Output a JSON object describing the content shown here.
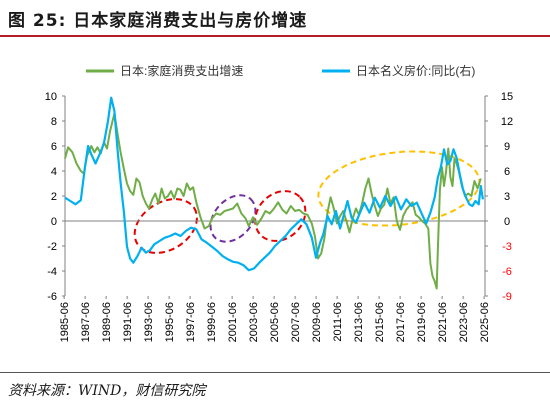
{
  "figure": {
    "title": "图 25:  日本家庭消费支出与房价增速",
    "source": "资料来源：WIND，财信研究院"
  },
  "chart_data": {
    "type": "line",
    "grid": false,
    "legend_position": "top",
    "colors": {
      "series_consumption": "#70ad47",
      "series_house_price": "#00b0f0",
      "left_axis_text": "#000000",
      "right_axis_negative_text": "#ff0000",
      "ellipse_red": "#e60000",
      "ellipse_purple": "#7030a0",
      "ellipse_yellow": "#ffc000"
    },
    "x_tick_labels": [
      "1985-06",
      "1987-06",
      "1989-06",
      "1991-06",
      "1993-06",
      "1995-06",
      "1997-06",
      "1999-06",
      "2001-06",
      "2003-06",
      "2005-06",
      "2007-06",
      "2009-06",
      "2011-06",
      "2013-06",
      "2015-06",
      "2017-06",
      "2019-06",
      "2021-06",
      "2023-06",
      "2025-06"
    ],
    "x_range": [
      1985.5,
      2025.5
    ],
    "y_left": {
      "range": [
        -6,
        10
      ],
      "ticks": [
        "-6",
        "-4",
        "-2",
        "0",
        "2",
        "4",
        "6",
        "8",
        "10"
      ]
    },
    "y_right": {
      "range": [
        -9,
        15
      ],
      "ticks": [
        "-9",
        "-6",
        "-3",
        "0",
        "3",
        "6",
        "9",
        "12",
        "15"
      ]
    },
    "series": [
      {
        "name": "日本:家庭消费支出增速",
        "axis": "left",
        "points": [
          [
            1985.5,
            5.0
          ],
          [
            1985.8,
            5.9
          ],
          [
            1986.2,
            5.5
          ],
          [
            1986.6,
            4.6
          ],
          [
            1987.0,
            4.0
          ],
          [
            1987.3,
            3.8
          ],
          [
            1987.6,
            5.2
          ],
          [
            1988.0,
            6.0
          ],
          [
            1988.3,
            5.5
          ],
          [
            1988.6,
            5.9
          ],
          [
            1988.9,
            5.4
          ],
          [
            1989.2,
            6.3
          ],
          [
            1989.5,
            5.8
          ],
          [
            1989.8,
            7.2
          ],
          [
            1990.2,
            8.6
          ],
          [
            1990.5,
            7.0
          ],
          [
            1990.8,
            5.5
          ],
          [
            1991.1,
            4.2
          ],
          [
            1991.4,
            3.0
          ],
          [
            1991.7,
            2.4
          ],
          [
            1992.0,
            2.1
          ],
          [
            1992.3,
            3.4
          ],
          [
            1992.6,
            3.1
          ],
          [
            1992.9,
            2.0
          ],
          [
            1993.2,
            1.4
          ],
          [
            1993.5,
            1.0
          ],
          [
            1993.8,
            1.7
          ],
          [
            1994.1,
            2.2
          ],
          [
            1994.4,
            1.4
          ],
          [
            1994.7,
            2.6
          ],
          [
            1995.0,
            1.8
          ],
          [
            1995.3,
            2.0
          ],
          [
            1995.6,
            2.4
          ],
          [
            1995.9,
            1.8
          ],
          [
            1996.2,
            2.6
          ],
          [
            1996.5,
            2.5
          ],
          [
            1996.8,
            2.0
          ],
          [
            1997.1,
            3.0
          ],
          [
            1997.4,
            2.5
          ],
          [
            1997.7,
            2.7
          ],
          [
            1998.0,
            1.5
          ],
          [
            1998.4,
            0.3
          ],
          [
            1998.8,
            -0.6
          ],
          [
            1999.2,
            -0.4
          ],
          [
            1999.5,
            0.2
          ],
          [
            1999.9,
            0.6
          ],
          [
            2000.3,
            0.5
          ],
          [
            2000.7,
            0.8
          ],
          [
            2001.1,
            0.9
          ],
          [
            2001.5,
            1.0
          ],
          [
            2001.9,
            1.4
          ],
          [
            2002.3,
            0.6
          ],
          [
            2002.7,
            0.2
          ],
          [
            2003.0,
            -0.4
          ],
          [
            2003.4,
            0.3
          ],
          [
            2003.8,
            -0.3
          ],
          [
            2004.2,
            0.2
          ],
          [
            2004.6,
            0.8
          ],
          [
            2005.0,
            0.6
          ],
          [
            2005.4,
            1.0
          ],
          [
            2005.8,
            1.5
          ],
          [
            2006.2,
            0.9
          ],
          [
            2006.6,
            0.6
          ],
          [
            2007.0,
            1.2
          ],
          [
            2007.4,
            0.8
          ],
          [
            2007.8,
            0.9
          ],
          [
            2008.2,
            0.6
          ],
          [
            2008.6,
            0.5
          ],
          [
            2009.0,
            -0.2
          ],
          [
            2009.3,
            -1.2
          ],
          [
            2009.6,
            -3.0
          ],
          [
            2009.9,
            -2.6
          ],
          [
            2010.2,
            -1.4
          ],
          [
            2010.5,
            0.7
          ],
          [
            2010.8,
            1.9
          ],
          [
            2011.1,
            1.0
          ],
          [
            2011.4,
            -0.2
          ],
          [
            2011.7,
            0.4
          ],
          [
            2012.0,
            0.8
          ],
          [
            2012.3,
            0.0
          ],
          [
            2012.6,
            -0.9
          ],
          [
            2012.9,
            0.2
          ],
          [
            2013.2,
            1.0
          ],
          [
            2013.5,
            0.5
          ],
          [
            2013.8,
            1.4
          ],
          [
            2014.1,
            2.6
          ],
          [
            2014.4,
            3.4
          ],
          [
            2014.7,
            2.2
          ],
          [
            2015.0,
            1.2
          ],
          [
            2015.3,
            0.4
          ],
          [
            2015.6,
            1.0
          ],
          [
            2015.9,
            1.3
          ],
          [
            2016.2,
            2.6
          ],
          [
            2016.5,
            1.4
          ],
          [
            2016.8,
            1.9
          ],
          [
            2017.1,
            0.0
          ],
          [
            2017.4,
            -0.7
          ],
          [
            2017.7,
            0.4
          ],
          [
            2018.0,
            0.9
          ],
          [
            2018.3,
            1.2
          ],
          [
            2018.6,
            1.5
          ],
          [
            2018.9,
            0.5
          ],
          [
            2019.2,
            0.3
          ],
          [
            2019.5,
            0.0
          ],
          [
            2019.8,
            -0.2
          ],
          [
            2020.1,
            -0.6
          ],
          [
            2020.3,
            -3.4
          ],
          [
            2020.5,
            -4.4
          ],
          [
            2020.7,
            -4.8
          ],
          [
            2020.9,
            -5.4
          ],
          [
            2021.0,
            -2.4
          ],
          [
            2021.2,
            2.5
          ],
          [
            2021.4,
            4.3
          ],
          [
            2021.6,
            2.8
          ],
          [
            2021.8,
            4.0
          ],
          [
            2022.0,
            5.8
          ],
          [
            2022.2,
            3.5
          ],
          [
            2022.4,
            2.8
          ],
          [
            2022.6,
            5.0
          ],
          [
            2022.8,
            4.6
          ],
          [
            2023.0,
            4.0
          ],
          [
            2023.3,
            2.8
          ],
          [
            2023.6,
            2.0
          ],
          [
            2023.9,
            2.2
          ],
          [
            2024.2,
            2.0
          ],
          [
            2024.5,
            3.2
          ],
          [
            2024.8,
            2.6
          ],
          [
            2025.1,
            3.4
          ]
        ]
      },
      {
        "name": "日本名义房价:同比(右)",
        "axis": "right",
        "points": [
          [
            1985.5,
            2.8
          ],
          [
            1986.0,
            2.4
          ],
          [
            1986.5,
            2.0
          ],
          [
            1987.0,
            2.5
          ],
          [
            1987.4,
            6.5
          ],
          [
            1987.7,
            9.0
          ],
          [
            1988.0,
            8.0
          ],
          [
            1988.4,
            6.9
          ],
          [
            1988.8,
            8.0
          ],
          [
            1989.2,
            9.3
          ],
          [
            1989.6,
            12.0
          ],
          [
            1989.9,
            14.8
          ],
          [
            1990.2,
            13.2
          ],
          [
            1990.5,
            8.6
          ],
          [
            1990.8,
            4.6
          ],
          [
            1991.1,
            1.2
          ],
          [
            1991.4,
            -3.1
          ],
          [
            1991.7,
            -4.5
          ],
          [
            1992.0,
            -5.0
          ],
          [
            1992.4,
            -4.2
          ],
          [
            1992.8,
            -3.2
          ],
          [
            1993.2,
            -3.8
          ],
          [
            1993.6,
            -3.5
          ],
          [
            1994.0,
            -2.8
          ],
          [
            1994.5,
            -2.4
          ],
          [
            1995.0,
            -2.0
          ],
          [
            1995.5,
            -1.8
          ],
          [
            1996.0,
            -1.5
          ],
          [
            1996.5,
            -1.8
          ],
          [
            1997.0,
            -1.2
          ],
          [
            1997.5,
            -0.8
          ],
          [
            1998.0,
            -1.0
          ],
          [
            1998.5,
            -2.2
          ],
          [
            1999.0,
            -2.6
          ],
          [
            1999.5,
            -3.1
          ],
          [
            2000.0,
            -3.6
          ],
          [
            2000.5,
            -4.2
          ],
          [
            2001.0,
            -4.6
          ],
          [
            2001.5,
            -4.9
          ],
          [
            2002.0,
            -5.0
          ],
          [
            2002.5,
            -5.3
          ],
          [
            2003.0,
            -5.9
          ],
          [
            2003.5,
            -5.7
          ],
          [
            2004.0,
            -5.0
          ],
          [
            2004.5,
            -4.4
          ],
          [
            2005.0,
            -3.8
          ],
          [
            2005.5,
            -3.0
          ],
          [
            2006.0,
            -2.4
          ],
          [
            2006.5,
            -1.8
          ],
          [
            2007.0,
            -1.0
          ],
          [
            2007.5,
            -0.4
          ],
          [
            2008.0,
            0.2
          ],
          [
            2008.5,
            -0.4
          ],
          [
            2009.0,
            -2.0
          ],
          [
            2009.4,
            -4.4
          ],
          [
            2009.8,
            -2.6
          ],
          [
            2010.1,
            -1.6
          ],
          [
            2010.5,
            0.6
          ],
          [
            2010.9,
            -0.4
          ],
          [
            2011.3,
            1.2
          ],
          [
            2011.7,
            -0.9
          ],
          [
            2012.0,
            0.5
          ],
          [
            2012.4,
            2.4
          ],
          [
            2012.8,
            0.4
          ],
          [
            2013.2,
            -0.2
          ],
          [
            2013.6,
            1.0
          ],
          [
            2014.0,
            2.2
          ],
          [
            2014.5,
            1.0
          ],
          [
            2015.0,
            2.8
          ],
          [
            2015.5,
            1.6
          ],
          [
            2016.0,
            3.0
          ],
          [
            2016.5,
            1.8
          ],
          [
            2017.0,
            2.9
          ],
          [
            2017.5,
            1.4
          ],
          [
            2018.0,
            2.6
          ],
          [
            2018.5,
            1.8
          ],
          [
            2019.0,
            2.2
          ],
          [
            2019.5,
            0.8
          ],
          [
            2019.9,
            -0.3
          ],
          [
            2020.3,
            1.0
          ],
          [
            2020.7,
            2.8
          ],
          [
            2021.0,
            5.2
          ],
          [
            2021.3,
            6.5
          ],
          [
            2021.6,
            8.6
          ],
          [
            2021.9,
            6.8
          ],
          [
            2022.2,
            7.2
          ],
          [
            2022.5,
            8.6
          ],
          [
            2022.8,
            7.6
          ],
          [
            2023.1,
            5.6
          ],
          [
            2023.4,
            3.8
          ],
          [
            2023.7,
            2.8
          ],
          [
            2024.0,
            2.0
          ],
          [
            2024.3,
            1.8
          ],
          [
            2024.6,
            2.4
          ],
          [
            2024.9,
            2.0
          ],
          [
            2025.1,
            4.2
          ],
          [
            2025.3,
            2.6
          ]
        ]
      }
    ],
    "annotations": [
      {
        "shape": "dashed-ellipse",
        "color_key": "ellipse_red",
        "center": [
          1995.1,
          -0.4
        ],
        "rx_years": 3.2,
        "ry_left_units": 1.9,
        "rotation_deg": -32
      },
      {
        "shape": "dashed-ellipse",
        "color_key": "ellipse_purple",
        "center": [
          2001.5,
          0.2
        ],
        "rx_years": 2.5,
        "ry_left_units": 1.5,
        "rotation_deg": -48
      },
      {
        "shape": "dashed-ellipse",
        "color_key": "ellipse_red",
        "center": [
          2006.0,
          0.4
        ],
        "rx_years": 2.6,
        "ry_left_units": 1.8,
        "rotation_deg": -44
      },
      {
        "shape": "dashed-ellipse",
        "color_key": "ellipse_yellow",
        "center": [
          2017.3,
          2.6
        ],
        "rx_years": 7.7,
        "ry_left_units": 2.9,
        "rotation_deg": -6
      }
    ]
  }
}
